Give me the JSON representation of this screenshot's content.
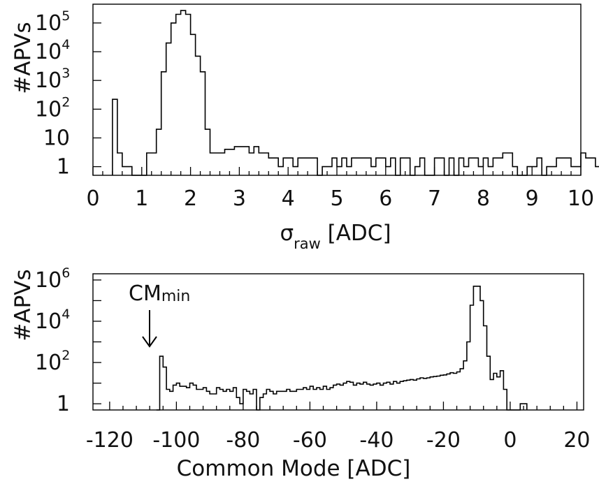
{
  "chart_data": [
    {
      "type": "histogram",
      "ylabel": "#APVs",
      "xlabel": {
        "main": "σ",
        "sub": "raw",
        "rest": " [ADC]"
      },
      "xlim": [
        0,
        10
      ],
      "ylim_log": [
        0.5,
        450000
      ],
      "log_y": true,
      "xticks": [
        0,
        1,
        2,
        3,
        4,
        5,
        6,
        7,
        8,
        9,
        10
      ],
      "xtick_labels": [
        "0",
        "1",
        "2",
        "3",
        "4",
        "5",
        "6",
        "7",
        "8",
        "9",
        "10"
      ],
      "yticks": [
        {
          "value": 1,
          "base": "1",
          "exp": ""
        },
        {
          "value": 10,
          "base": "10",
          "exp": ""
        },
        {
          "value": 100,
          "base": "10",
          "exp": "2"
        },
        {
          "value": 1000,
          "base": "10",
          "exp": "3"
        },
        {
          "value": 10000,
          "base": "10",
          "exp": "4"
        },
        {
          "value": 100000,
          "base": "10",
          "exp": "5"
        }
      ],
      "bin_edges_start": 0.4,
      "bin_width": 0.1,
      "counts": [
        220,
        3,
        1,
        1,
        0,
        0,
        0,
        3,
        3,
        20,
        2000,
        20000,
        100000,
        200000,
        270000,
        200000,
        40000,
        7000,
        2000,
        20,
        3,
        3,
        3,
        4,
        4,
        5,
        5,
        5,
        3,
        5,
        3,
        3,
        2,
        2,
        1,
        2,
        2,
        1,
        2,
        2,
        2,
        2,
        0,
        1,
        1,
        2,
        1,
        2,
        1,
        2,
        2,
        2,
        2,
        1,
        2,
        2,
        1,
        2,
        0,
        2,
        2,
        0,
        1,
        2,
        0,
        0,
        2,
        2,
        0,
        2,
        0,
        2,
        1,
        2,
        2,
        1,
        2,
        1,
        2,
        2,
        3,
        3,
        1,
        0,
        0,
        1,
        1,
        2,
        0,
        1,
        1,
        2,
        2,
        2,
        1,
        1,
        3,
        2,
        2,
        1
      ],
      "mark_style": "step line"
    },
    {
      "type": "histogram",
      "ylabel": "#APVs",
      "xlabel": "Common Mode [ADC]",
      "xlim": [
        -125,
        22
      ],
      "ylim_log": [
        0.5,
        2000000
      ],
      "log_y": true,
      "xticks": [
        -120,
        -100,
        -80,
        -60,
        -40,
        -20,
        0,
        20
      ],
      "xtick_labels": [
        "-120",
        "-100",
        "-80",
        "-60",
        "-40",
        "-20",
        "0",
        "20"
      ],
      "yticks": [
        {
          "value": 1,
          "base": "1",
          "exp": ""
        },
        {
          "value": 100,
          "base": "10",
          "exp": "2"
        },
        {
          "value": 10000,
          "base": "10",
          "exp": "4"
        },
        {
          "value": 1000000,
          "base": "10",
          "exp": "6"
        }
      ],
      "annotation": {
        "text": "CM",
        "sub": "min",
        "points_to_x": -104.5
      },
      "bin_edges_start": -106,
      "bin_width": 1,
      "counts": [
        0,
        200,
        60,
        5,
        4,
        8,
        10,
        7,
        7,
        6,
        10,
        8,
        5,
        5,
        6,
        4,
        3,
        3,
        6,
        5,
        4,
        5,
        4,
        6,
        2,
        1,
        5,
        4,
        3,
        5,
        0,
        2,
        3,
        5,
        4,
        3,
        4,
        4,
        4,
        5,
        4,
        4,
        5,
        5,
        6,
        5,
        7,
        5,
        6,
        5,
        7,
        5,
        6,
        8,
        9,
        8,
        10,
        12,
        11,
        8,
        10,
        9,
        11,
        9,
        8,
        9,
        10,
        8,
        10,
        11,
        9,
        12,
        10,
        12,
        13,
        14,
        15,
        14,
        16,
        18,
        17,
        18,
        20,
        21,
        22,
        24,
        25,
        28,
        32,
        30,
        35,
        50,
        120,
        1000,
        60000,
        500000,
        500000,
        100000,
        6000,
        200,
        15,
        30,
        20,
        40,
        5,
        0,
        0,
        0,
        0,
        1,
        1
      ]
    }
  ]
}
